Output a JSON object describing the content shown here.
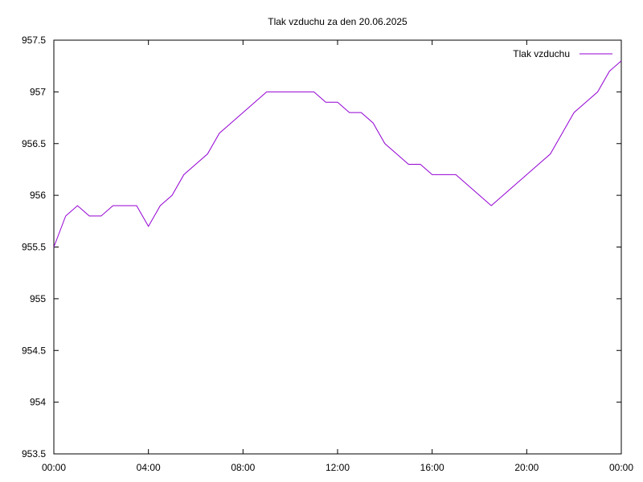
{
  "chart_data": {
    "type": "line",
    "title": "Tlak vzduchu za den 20.06.2025",
    "xlabel": "",
    "ylabel": "",
    "ylim": [
      953.5,
      957.5
    ],
    "xlim": [
      "00:00",
      "24:00"
    ],
    "x_ticks": [
      "00:00",
      "04:00",
      "08:00",
      "12:00",
      "16:00",
      "20:00",
      "00:00"
    ],
    "y_ticks": [
      "953.5",
      "954",
      "954.5",
      "955",
      "955.5",
      "956",
      "956.5",
      "957",
      "957.5"
    ],
    "grid": false,
    "legend": {
      "position": "top-right",
      "entries": [
        "Tlak vzduchu"
      ]
    },
    "series": [
      {
        "name": "Tlak vzduchu",
        "color": "#9400d3",
        "x_hours": [
          0,
          0.5,
          1,
          1.5,
          2,
          2.5,
          3,
          3.5,
          3.75,
          4,
          4.25,
          4.5,
          5,
          5.5,
          6,
          6.5,
          7,
          7.5,
          8,
          8.5,
          9,
          9.5,
          10,
          10.5,
          11,
          11.5,
          12,
          12.5,
          13,
          13.5,
          14,
          14.5,
          15,
          15.5,
          16,
          16.5,
          17,
          17.5,
          18,
          18.5,
          19,
          19.5,
          20,
          20.5,
          21,
          21.5,
          22,
          22.5,
          23,
          23.5,
          24
        ],
        "values": [
          955.5,
          955.8,
          955.9,
          955.8,
          955.8,
          955.9,
          955.9,
          955.9,
          955.8,
          955.7,
          955.8,
          955.9,
          956.0,
          956.2,
          956.3,
          956.4,
          956.6,
          956.7,
          956.8,
          956.9,
          957.0,
          957.0,
          957.0,
          957.0,
          957.0,
          956.9,
          956.9,
          956.8,
          956.8,
          956.7,
          956.5,
          956.4,
          956.3,
          956.3,
          956.2,
          956.2,
          956.2,
          956.1,
          956.0,
          955.9,
          956.0,
          956.1,
          956.2,
          956.3,
          956.4,
          956.6,
          956.8,
          956.9,
          957.0,
          957.2,
          957.3
        ]
      }
    ]
  }
}
